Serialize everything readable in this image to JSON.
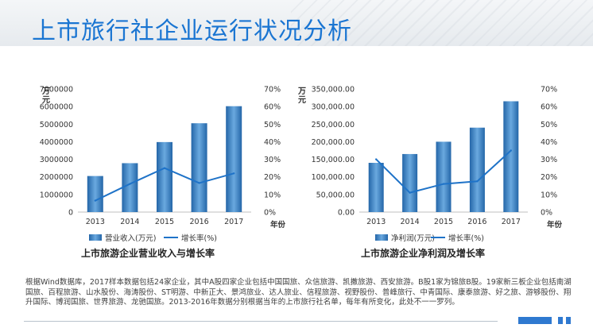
{
  "page": {
    "title": "上市旅行社企业运行状况分析"
  },
  "chart_data": [
    {
      "type": "bar",
      "title": "上市旅游企业营业收入与增长率",
      "ylabel": "万元",
      "y2label": "",
      "xlabel": "年份",
      "categories": [
        "2013",
        "2014",
        "2015",
        "2016",
        "2017"
      ],
      "ylim": [
        0,
        7000000
      ],
      "y2lim": [
        0,
        70
      ],
      "yticks": [
        "0",
        "1000000",
        "2000000",
        "3000000",
        "4000000",
        "5000000",
        "6000000",
        "7000000"
      ],
      "y2ticks": [
        "0%",
        "10%",
        "20%",
        "30%",
        "40%",
        "50%",
        "60%",
        "70%"
      ],
      "series": [
        {
          "name": "营业收入(万元)",
          "kind": "bar",
          "axis": "left",
          "values": [
            2050000,
            2780000,
            3980000,
            5050000,
            6020000
          ]
        },
        {
          "name": "增长率(%)",
          "kind": "line",
          "axis": "right",
          "values": [
            6.5,
            16,
            25,
            16.5,
            22
          ]
        }
      ],
      "legend": "bottom",
      "bar_color": "#3b86c9",
      "line_color": "#1f73c8"
    },
    {
      "type": "bar",
      "title": "上市旅游企业净利润及增长率",
      "ylabel": "万元",
      "y2label": "",
      "xlabel": "年份",
      "categories": [
        "2013",
        "2014",
        "2015",
        "2016",
        "2017"
      ],
      "ylim": [
        0,
        350000
      ],
      "y2lim": [
        0,
        70
      ],
      "yticks": [
        "0.00",
        "50,000.00",
        "100,000.00",
        "150,000.00",
        "200,000.00",
        "250,000.00",
        "300,000.00",
        "350,000.00"
      ],
      "y2ticks": [
        "0%",
        "10%",
        "20%",
        "30%",
        "40%",
        "50%",
        "60%",
        "70%"
      ],
      "series": [
        {
          "name": "净利润(万元)",
          "kind": "bar",
          "axis": "left",
          "values": [
            140000,
            165000,
            200000,
            240000,
            315000
          ]
        },
        {
          "name": "增长率(%)",
          "kind": "line",
          "axis": "right",
          "values": [
            30,
            11,
            16,
            17.5,
            35
          ]
        }
      ],
      "legend": "bottom",
      "bar_color": "#3b86c9",
      "line_color": "#1f73c8"
    }
  ],
  "footnote": "根据Wind数据库，2017样本数据包括24家企业，其中A股四家企业包括中国国旅、众信旅游、凯撒旅游、西安旅游。B股1家为锦旅B股。19家新三板企业包括南湖国旅、百程旅游、山水股份、海涛股份、ST明游、中新正大、景鸿旅业、达人旅业、信程旅游、视野股份、普峰旅行、中青国际、康泰旅游、好之旅、游够股份、翔升国际、博润国旅、世界旅游、龙驰国旅。2013-2016年数据分别根据当年的上市旅行社名单，每年有所变化，此处不一一罗列。",
  "colors": {
    "title": "#1a75d2",
    "accent": "#2f79d0"
  }
}
